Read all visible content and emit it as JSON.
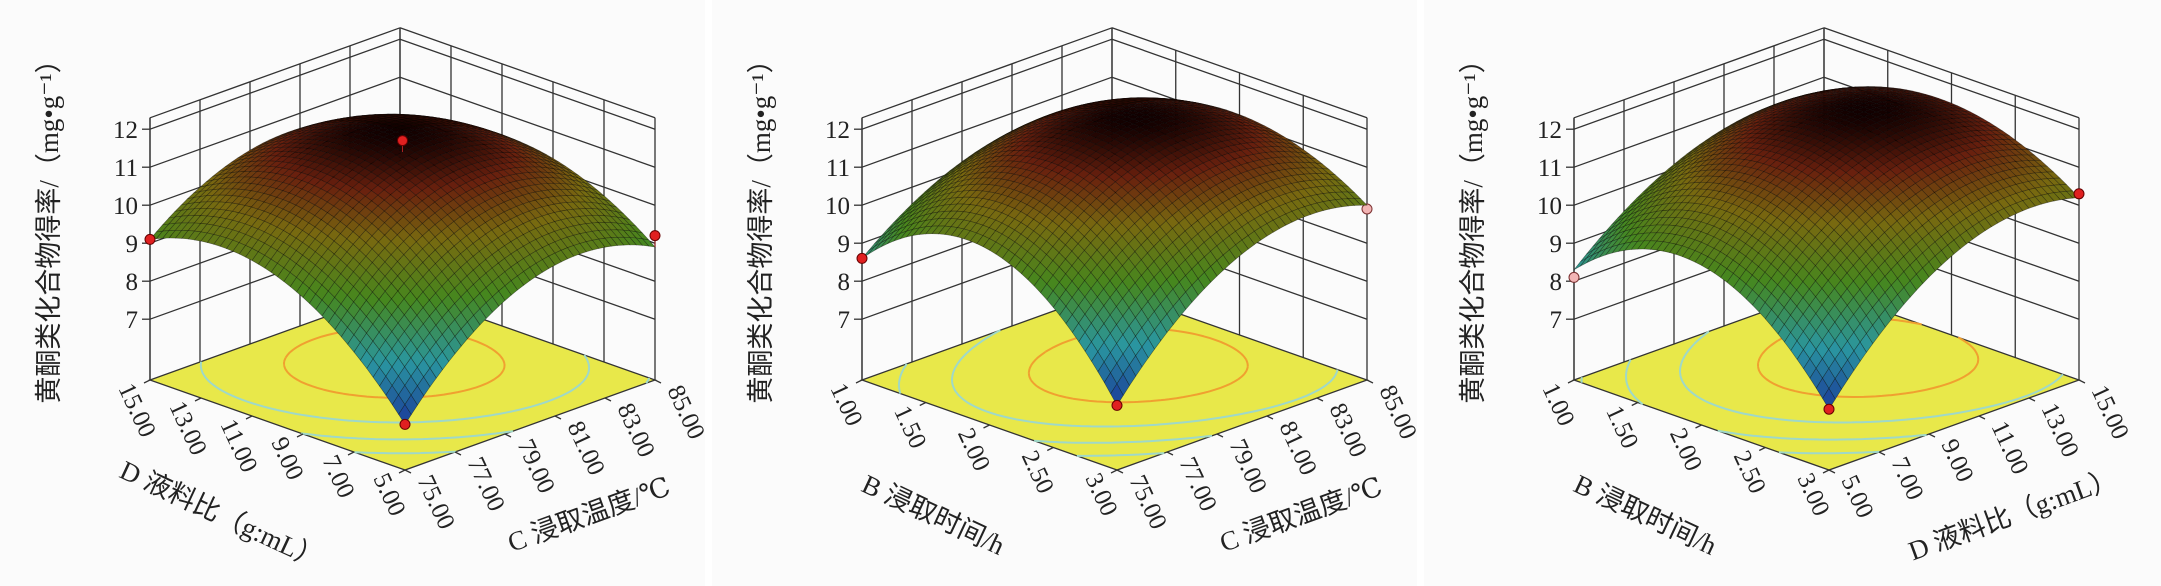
{
  "chart_data": [
    {
      "type": "surface3d",
      "zlabel": "黄酮类化合物得率/（mg•g⁻¹）",
      "z_ticks": [
        "7",
        "8",
        "9",
        "10",
        "11",
        "12"
      ],
      "x_axis": {
        "label": "D 液料比（g:mL）",
        "range": [
          5,
          15
        ],
        "reversed": false,
        "ticks": [
          "5.00",
          "7.00",
          "9.00",
          "11.00",
          "13.00",
          "15.00"
        ]
      },
      "y_axis": {
        "label": "C 浸取温度/℃",
        "range": [
          75,
          85
        ],
        "reversed": false,
        "ticks": [
          "75.00",
          "77.00",
          "79.00",
          "81.00",
          "83.00",
          "85.00"
        ]
      },
      "z_grid": [
        [
          6.6,
          9.2,
          8.9
        ],
        [
          9.3,
          11.4,
          10.4
        ],
        [
          9.1,
          10.6,
          9.6
        ]
      ],
      "design_points": [
        {
          "x": 10,
          "y": 80,
          "z": 11.7
        },
        {
          "x": 10,
          "y": 80,
          "z": 11.0
        },
        {
          "x": 10,
          "y": 80,
          "z": 10.85
        },
        {
          "x": 15,
          "y": 75,
          "z": 9.1
        },
        {
          "x": 5,
          "y": 85,
          "z": 9.2
        },
        {
          "x": 5,
          "y": 75,
          "z": 6.6
        }
      ],
      "floor_color": "#e8e84a"
    },
    {
      "type": "surface3d",
      "zlabel": "黄酮类化合物得率/（mg•g⁻¹）",
      "z_ticks": [
        "7",
        "8",
        "9",
        "10",
        "11",
        "12"
      ],
      "x_axis": {
        "label": "B 浸取时间/h",
        "range": [
          1,
          3
        ],
        "reversed": true,
        "ticks": [
          "1.00",
          "1.50",
          "2.00",
          "2.50",
          "3.00"
        ]
      },
      "y_axis": {
        "label": "C 浸取温度/℃",
        "range": [
          75,
          85
        ],
        "reversed": false,
        "ticks": [
          "75.00",
          "77.00",
          "79.00",
          "81.00",
          "83.00",
          "85.00"
        ]
      },
      "z_grid": [
        [
          8.6,
          10.4,
          10.2
        ],
        [
          10.0,
          11.9,
          11.2
        ],
        [
          7.1,
          9.9,
          10.0
        ]
      ],
      "design_points": [
        {
          "x": 2,
          "y": 80,
          "z": 11.1
        },
        {
          "x": 2,
          "y": 80,
          "z": 11.0
        },
        {
          "x": 1,
          "y": 75,
          "z": 8.6
        },
        {
          "x": 3,
          "y": 85,
          "z": 9.9
        },
        {
          "x": 3,
          "y": 75,
          "z": 7.1
        }
      ],
      "floor_color": "#e8e84a"
    },
    {
      "type": "surface3d",
      "zlabel": "黄酮类化合物得率/（mg•g⁻¹）",
      "z_ticks": [
        "7",
        "8",
        "9",
        "10",
        "11",
        "12"
      ],
      "x_axis": {
        "label": "B 浸取时间/h",
        "range": [
          1,
          3
        ],
        "reversed": true,
        "ticks": [
          "1.00",
          "1.50",
          "2.00",
          "2.50",
          "3.00"
        ]
      },
      "y_axis": {
        "label": "D 液料比（g:mL）",
        "range": [
          5,
          15
        ],
        "reversed": false,
        "ticks": [
          "5.00",
          "7.00",
          "9.00",
          "11.00",
          "13.00",
          "15.00"
        ]
      },
      "z_grid": [
        [
          8.3,
          10.4,
          10.6
        ],
        [
          9.6,
          11.8,
          11.5
        ],
        [
          7.0,
          9.9,
          10.2
        ]
      ],
      "design_points": [
        {
          "x": 2,
          "y": 10,
          "z": 11.2
        },
        {
          "x": 2,
          "y": 10,
          "z": 11.0
        },
        {
          "x": 1,
          "y": 5,
          "z": 8.1
        },
        {
          "x": 3,
          "y": 15,
          "z": 10.3
        },
        {
          "x": 3,
          "y": 5,
          "z": 7.0
        }
      ],
      "floor_color": "#e8e84a"
    }
  ]
}
